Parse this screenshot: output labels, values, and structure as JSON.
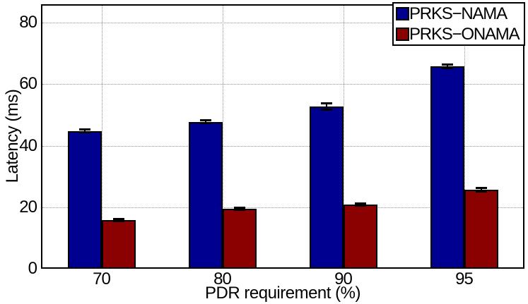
{
  "chart_data": {
    "type": "bar",
    "title": "",
    "xlabel": "PDR requirement (%)",
    "ylabel": "Latency (ms)",
    "categories": [
      "70",
      "80",
      "90",
      "95"
    ],
    "series": [
      {
        "name": "PRKS−NAMA",
        "color": "#000090",
        "values": [
          44.8,
          47.8,
          52.8,
          65.9
        ],
        "errors": [
          0.5,
          0.4,
          1.0,
          0.6
        ]
      },
      {
        "name": "PRKS−ONAMA",
        "color": "#8b0000",
        "values": [
          15.8,
          19.5,
          20.9,
          25.7
        ],
        "errors": [
          0.4,
          0.4,
          0.4,
          0.5
        ]
      }
    ],
    "ylim": [
      0,
      86
    ],
    "yticks": [
      0,
      20,
      40,
      60,
      80
    ],
    "grid": "dotted",
    "legend_position": "top-right",
    "bar_edge_color": "#000000",
    "error_bar_color": "#000000",
    "axis_color": "#000000",
    "background_color": "#ffffff"
  }
}
